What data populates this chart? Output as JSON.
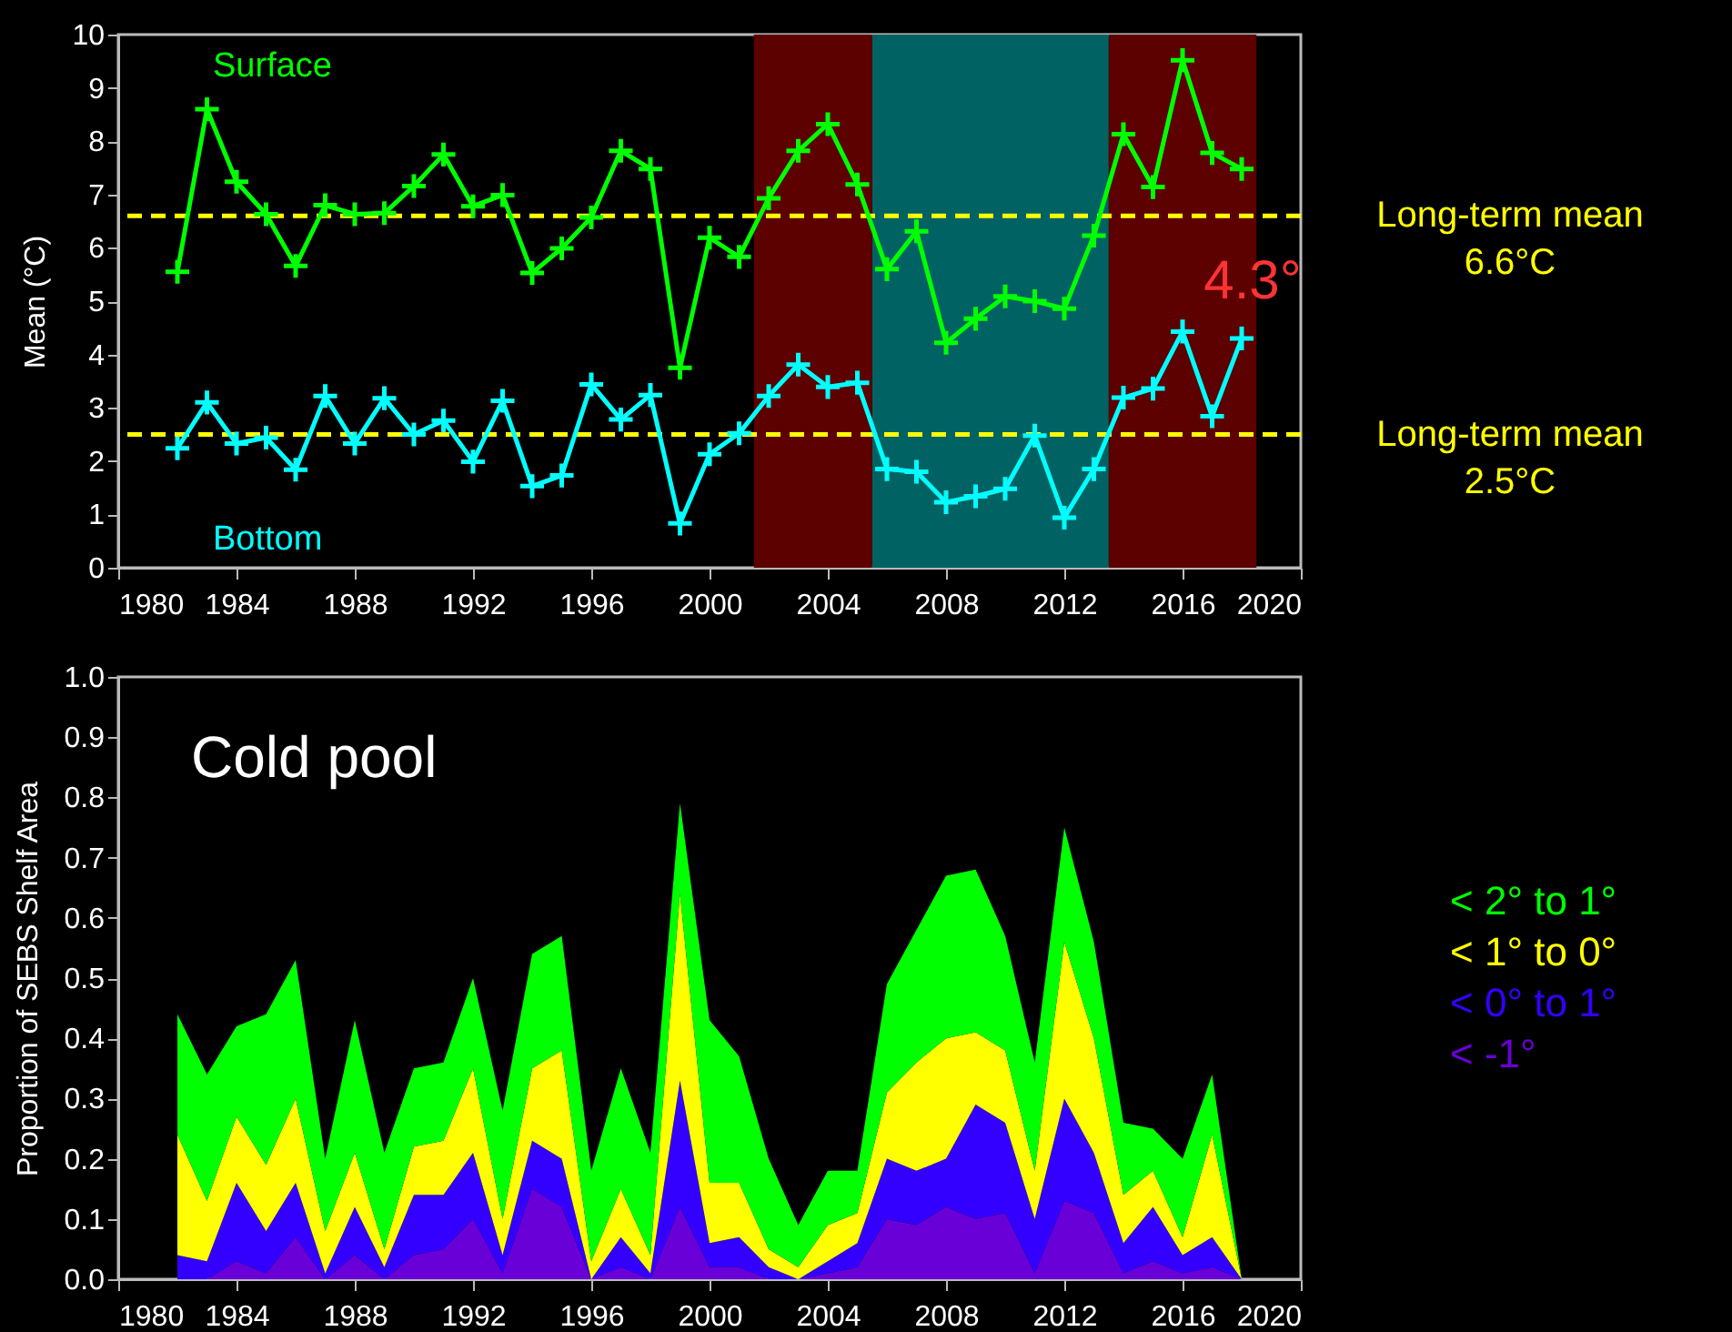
{
  "chart_data": [
    {
      "type": "line",
      "ylabel": "Mean (°C)",
      "x": [
        1982,
        1983,
        1984,
        1985,
        1986,
        1987,
        1988,
        1989,
        1990,
        1991,
        1992,
        1993,
        1994,
        1995,
        1996,
        1997,
        1998,
        1999,
        2000,
        2001,
        2002,
        2003,
        2004,
        2005,
        2006,
        2007,
        2008,
        2009,
        2010,
        2011,
        2012,
        2013,
        2014,
        2015,
        2016,
        2017,
        2018
      ],
      "xlim": [
        1980,
        2020
      ],
      "xticks": [
        1980,
        1984,
        1988,
        1992,
        1996,
        2000,
        2004,
        2008,
        2012,
        2016,
        2020
      ],
      "ylim": [
        0,
        10
      ],
      "yticks": [
        0,
        1,
        2,
        3,
        4,
        5,
        6,
        7,
        8,
        9,
        10
      ],
      "marker": "cross",
      "series": [
        {
          "name": "Surface",
          "color": "#00ff00",
          "values": [
            5.55,
            8.6,
            7.24,
            6.63,
            5.66,
            6.8,
            6.63,
            6.65,
            7.16,
            7.75,
            6.78,
            6.99,
            5.53,
            5.99,
            6.57,
            7.82,
            7.48,
            3.75,
            6.19,
            5.83,
            6.93,
            7.82,
            8.32,
            7.19,
            5.6,
            6.31,
            4.22,
            4.67,
            5.09,
            5.0,
            4.86,
            6.23,
            8.13,
            7.14,
            9.52,
            7.78,
            7.48
          ]
        },
        {
          "name": "Bottom",
          "color": "#00ffff",
          "values": [
            2.24,
            3.1,
            2.33,
            2.44,
            1.84,
            3.22,
            2.33,
            3.18,
            2.5,
            2.76,
            1.99,
            3.13,
            1.53,
            1.73,
            3.44,
            2.78,
            3.24,
            0.83,
            2.13,
            2.52,
            3.22,
            3.81,
            3.39,
            3.47,
            1.85,
            1.8,
            1.23,
            1.34,
            1.48,
            2.48,
            0.94,
            1.85,
            3.19,
            3.36,
            4.43,
            2.84,
            4.3
          ]
        }
      ],
      "ref_lines": [
        {
          "axis": "y",
          "value": 6.6,
          "label": "Long-term mean\n6.6°C",
          "color": "#ffff00",
          "line_style": "dashed"
        },
        {
          "axis": "y",
          "value": 2.5,
          "label": "Long-term mean\n2.5°C",
          "color": "#ffff00",
          "line_style": "dashed"
        }
      ],
      "bands": [
        {
          "axis": "x",
          "from": 2001.5,
          "to": 2005.5,
          "color": "#5c0000"
        },
        {
          "axis": "x",
          "from": 2005.5,
          "to": 2013.5,
          "color": "#006262"
        },
        {
          "axis": "x",
          "from": 2013.5,
          "to": 2018.5,
          "color": "#5c0000"
        }
      ],
      "annotations": [
        {
          "text": "4.3°",
          "x": 2018,
          "y": 4.3
        }
      ]
    },
    {
      "type": "area",
      "stacked": true,
      "title": "Cold pool",
      "ylabel": "Proportion of SEBS Shelf Area",
      "legend": "right",
      "x": [
        1982,
        1983,
        1984,
        1985,
        1986,
        1987,
        1988,
        1989,
        1990,
        1991,
        1992,
        1993,
        1994,
        1995,
        1996,
        1997,
        1998,
        1999,
        2000,
        2001,
        2002,
        2003,
        2004,
        2005,
        2006,
        2007,
        2008,
        2009,
        2010,
        2011,
        2012,
        2013,
        2014,
        2015,
        2016,
        2017,
        2018
      ],
      "xlim": [
        1980,
        2020
      ],
      "xticks": [
        1980,
        1984,
        1988,
        1992,
        1996,
        2000,
        2004,
        2008,
        2012,
        2016,
        2020
      ],
      "ylim": [
        0,
        1
      ],
      "yticks": [
        {
          "value": 0,
          "label": "0.0"
        },
        0.1,
        0.2,
        0.3,
        0.4,
        0.5,
        0.6,
        0.7,
        0.8,
        0.9,
        {
          "value": 1,
          "label": "1.0"
        }
      ],
      "series": [
        {
          "name": "< -1°",
          "color": "#6a00d8",
          "values": [
            0,
            0,
            0.03,
            0.01,
            0.07,
            0,
            0.04,
            0,
            0.04,
            0.05,
            0.1,
            0.01,
            0.15,
            0.12,
            0,
            0.02,
            0,
            0.12,
            0.02,
            0.02,
            0,
            0,
            0.01,
            0.02,
            0.1,
            0.09,
            0.12,
            0.1,
            0.11,
            0.01,
            0.13,
            0.11,
            0.01,
            0.03,
            0.01,
            0.02,
            0
          ]
        },
        {
          "name": "< 0° to 1°",
          "color": "#3300ff",
          "values": [
            0.04,
            0.03,
            0.13,
            0.07,
            0.09,
            0.01,
            0.08,
            0.02,
            0.1,
            0.09,
            0.11,
            0.03,
            0.08,
            0.08,
            0,
            0.05,
            0.01,
            0.21,
            0.04,
            0.05,
            0.02,
            0,
            0.02,
            0.04,
            0.1,
            0.09,
            0.08,
            0.19,
            0.15,
            0.09,
            0.17,
            0.1,
            0.05,
            0.09,
            0.03,
            0.05,
            0
          ]
        },
        {
          "name": "< 1° to 0°",
          "color": "#ffff00",
          "values": [
            0.2,
            0.1,
            0.11,
            0.11,
            0.14,
            0.07,
            0.09,
            0.03,
            0.08,
            0.09,
            0.14,
            0.06,
            0.12,
            0.18,
            0.03,
            0.08,
            0.03,
            0.31,
            0.1,
            0.09,
            0.03,
            0.02,
            0.06,
            0.05,
            0.11,
            0.18,
            0.2,
            0.12,
            0.12,
            0.08,
            0.26,
            0.19,
            0.08,
            0.06,
            0.03,
            0.17,
            0
          ]
        },
        {
          "name": "< 2° to 1°",
          "color": "#00ff00",
          "values": [
            0.2,
            0.21,
            0.15,
            0.25,
            0.23,
            0.12,
            0.22,
            0.16,
            0.13,
            0.13,
            0.15,
            0.18,
            0.19,
            0.19,
            0.15,
            0.2,
            0.17,
            0.15,
            0.27,
            0.21,
            0.15,
            0.07,
            0.09,
            0.07,
            0.18,
            0.22,
            0.27,
            0.27,
            0.19,
            0.18,
            0.19,
            0.16,
            0.12,
            0.07,
            0.13,
            0.1,
            0
          ]
        }
      ]
    }
  ]
}
